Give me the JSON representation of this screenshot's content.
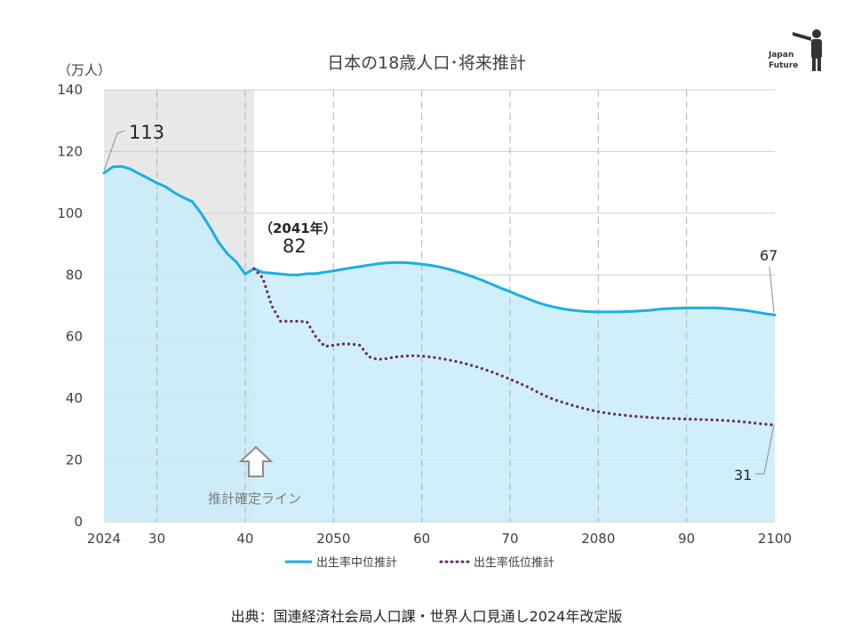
{
  "chart_data": {
    "type": "area",
    "title": "日本の18歳人口･将来推計",
    "y_unit_label": "（万人）",
    "xlim": [
      2024,
      2100
    ],
    "ylim": [
      0,
      140
    ],
    "y_ticks": [
      0,
      20,
      40,
      60,
      80,
      100,
      120,
      140
    ],
    "x_ticks": [
      {
        "value": 2024,
        "label": "2024"
      },
      {
        "value": 2030,
        "label": "30"
      },
      {
        "value": 2040,
        "label": "40"
      },
      {
        "value": 2050,
        "label": "2050"
      },
      {
        "value": 2060,
        "label": "60"
      },
      {
        "value": 2070,
        "label": "70"
      },
      {
        "value": 2080,
        "label": "2080"
      },
      {
        "value": 2090,
        "label": "90"
      },
      {
        "value": 2100,
        "label": "2100"
      }
    ],
    "confirmed_region": [
      2024,
      2041
    ],
    "confirmed_label": "推計確定ライン",
    "series": [
      {
        "name": "出生率中位推計",
        "color": "#1aaee5",
        "fill": "#c8ecf9",
        "style": "solid",
        "points": [
          [
            2024,
            113
          ],
          [
            2025,
            115
          ],
          [
            2026,
            115.2
          ],
          [
            2027,
            114.3
          ],
          [
            2028,
            112.8
          ],
          [
            2029,
            111.3
          ],
          [
            2030,
            109.8
          ],
          [
            2031,
            108.5
          ],
          [
            2032,
            106.6
          ],
          [
            2033,
            105.1
          ],
          [
            2034,
            103.8
          ],
          [
            2035,
            100
          ],
          [
            2036,
            95.5
          ],
          [
            2037,
            90.5
          ],
          [
            2038,
            86.8
          ],
          [
            2039,
            84.2
          ],
          [
            2040,
            80.3
          ],
          [
            2041,
            82
          ],
          [
            2042,
            80.8
          ],
          [
            2043,
            80.6
          ],
          [
            2044,
            80.3
          ],
          [
            2045,
            80
          ],
          [
            2046,
            80
          ],
          [
            2047,
            80.4
          ],
          [
            2048,
            80.4
          ],
          [
            2049,
            80.9
          ],
          [
            2050,
            81.3
          ],
          [
            2051,
            81.8
          ],
          [
            2052,
            82.3
          ],
          [
            2053,
            82.7
          ],
          [
            2054,
            83.2
          ],
          [
            2055,
            83.6
          ],
          [
            2056,
            83.9
          ],
          [
            2057,
            84
          ],
          [
            2058,
            84
          ],
          [
            2059,
            83.8
          ],
          [
            2060,
            83.5
          ],
          [
            2061,
            83.1
          ],
          [
            2062,
            82.6
          ],
          [
            2063,
            81.9
          ],
          [
            2064,
            81.1
          ],
          [
            2065,
            80.2
          ],
          [
            2066,
            79.2
          ],
          [
            2067,
            78.1
          ],
          [
            2068,
            76.9
          ],
          [
            2069,
            75.7
          ],
          [
            2070,
            74.6
          ],
          [
            2071,
            73.4
          ],
          [
            2072,
            72.3
          ],
          [
            2073,
            71.2
          ],
          [
            2074,
            70.3
          ],
          [
            2075,
            69.6
          ],
          [
            2076,
            69
          ],
          [
            2077,
            68.6
          ],
          [
            2078,
            68.3
          ],
          [
            2079,
            68.1
          ],
          [
            2080,
            68
          ],
          [
            2081,
            68
          ],
          [
            2082,
            68
          ],
          [
            2083,
            68.1
          ],
          [
            2084,
            68.2
          ],
          [
            2085,
            68.4
          ],
          [
            2086,
            68.6
          ],
          [
            2087,
            68.9
          ],
          [
            2088,
            69.1
          ],
          [
            2089,
            69.2
          ],
          [
            2090,
            69.3
          ],
          [
            2091,
            69.3
          ],
          [
            2092,
            69.3
          ],
          [
            2093,
            69.3
          ],
          [
            2094,
            69.2
          ],
          [
            2095,
            69
          ],
          [
            2096,
            68.7
          ],
          [
            2097,
            68.4
          ],
          [
            2098,
            67.9
          ],
          [
            2099,
            67.4
          ],
          [
            2100,
            67
          ]
        ]
      },
      {
        "name": "出生率低位推計",
        "color": "#6b2a6b",
        "style": "dotted",
        "points": [
          [
            2041,
            82
          ],
          [
            2042,
            79
          ],
          [
            2043,
            70
          ],
          [
            2044,
            65
          ],
          [
            2045,
            65
          ],
          [
            2046,
            65
          ],
          [
            2047,
            64.8
          ],
          [
            2048,
            60
          ],
          [
            2049,
            56.8
          ],
          [
            2050,
            57.2
          ],
          [
            2051,
            57.6
          ],
          [
            2052,
            57.6
          ],
          [
            2053,
            57.2
          ],
          [
            2054,
            53.5
          ],
          [
            2055,
            52.6
          ],
          [
            2056,
            52.9
          ],
          [
            2057,
            53.4
          ],
          [
            2058,
            53.7
          ],
          [
            2059,
            53.8
          ],
          [
            2060,
            53.7
          ],
          [
            2061,
            53.4
          ],
          [
            2062,
            53
          ],
          [
            2063,
            52.5
          ],
          [
            2064,
            51.9
          ],
          [
            2065,
            51.2
          ],
          [
            2066,
            50.4
          ],
          [
            2067,
            49.5
          ],
          [
            2068,
            48.5
          ],
          [
            2069,
            47.4
          ],
          [
            2070,
            46.2
          ],
          [
            2071,
            45
          ],
          [
            2072,
            43.7
          ],
          [
            2073,
            42.2
          ],
          [
            2074,
            40.8
          ],
          [
            2075,
            39.6
          ],
          [
            2076,
            38.7
          ],
          [
            2077,
            37.8
          ],
          [
            2078,
            37
          ],
          [
            2079,
            36.3
          ],
          [
            2080,
            35.7
          ],
          [
            2081,
            35.2
          ],
          [
            2082,
            34.8
          ],
          [
            2083,
            34.5
          ],
          [
            2084,
            34.2
          ],
          [
            2085,
            34
          ],
          [
            2086,
            33.8
          ],
          [
            2087,
            33.6
          ],
          [
            2088,
            33.5
          ],
          [
            2089,
            33.4
          ],
          [
            2090,
            33.3
          ],
          [
            2091,
            33.2
          ],
          [
            2092,
            33.1
          ],
          [
            2093,
            33
          ],
          [
            2094,
            32.9
          ],
          [
            2095,
            32.7
          ],
          [
            2096,
            32.5
          ],
          [
            2097,
            32.2
          ],
          [
            2098,
            31.9
          ],
          [
            2099,
            31.6
          ],
          [
            2100,
            31.3
          ]
        ]
      }
    ],
    "annotations": {
      "start_value": "113",
      "mid_year": "（2041年）",
      "mid_value": "82",
      "end_mid_value": "67",
      "end_low_value": "31"
    },
    "legend_placement": "bottom",
    "grid": true
  },
  "source_text": "出典：国連経済社会局人口課・世界人口見通し2024年改定版",
  "logo": {
    "line1": "Japan",
    "line2": "Future",
    "icon": "person-with-telescope-icon"
  }
}
